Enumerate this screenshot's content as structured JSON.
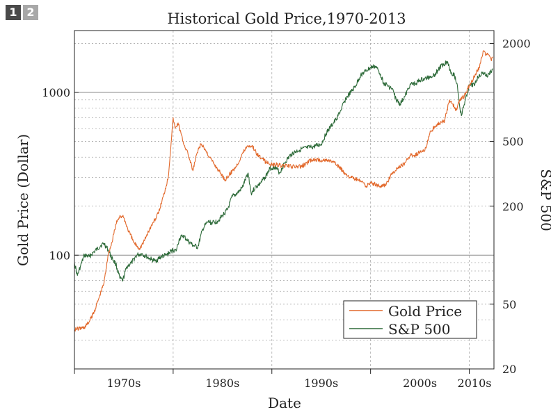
{
  "badges": [
    {
      "label": "1",
      "active": true
    },
    {
      "label": "2",
      "active": false
    }
  ],
  "chart_data": {
    "type": "line",
    "title": "Historical Gold Price,1970-2013",
    "xlabel": "Date",
    "ylabel": "Gold Price (Dollar)",
    "ylabel_right": "S&P 500",
    "x_range": [
      1970,
      2012.5
    ],
    "x_tick_labels": [
      "1970s",
      "1980s",
      "1990s",
      "2000s",
      "2010s"
    ],
    "y_scale": "log",
    "y_range": [
      20,
      2400
    ],
    "y_tick_labels": [
      "100",
      "1000"
    ],
    "y_right_scale": "log",
    "y_right_range": [
      20,
      2400
    ],
    "y_right_tick_labels": [
      "20",
      "50",
      "200",
      "500",
      "2000"
    ],
    "grid": true,
    "legend_position": "bottom-right",
    "colors": {
      "gold": "#e2692c",
      "sp500": "#2e6b3a",
      "reference": "#888888",
      "grid": "#aaaaaa"
    },
    "series": [
      {
        "name": "Gold Price",
        "color": "#e2692c",
        "axis": "left",
        "x": [
          1970.0,
          1971.0,
          1971.5,
          1972.0,
          1972.5,
          1973.0,
          1973.4,
          1973.8,
          1974.2,
          1974.6,
          1975.0,
          1975.4,
          1976.0,
          1976.6,
          1977.0,
          1977.5,
          1978.0,
          1978.5,
          1979.0,
          1979.5,
          1980.0,
          1980.2,
          1980.5,
          1981.0,
          1981.5,
          1982.0,
          1982.4,
          1982.8,
          1983.2,
          1983.7,
          1984.2,
          1984.8,
          1985.3,
          1986.0,
          1986.5,
          1987.0,
          1987.5,
          1988.0,
          1988.5,
          1989.0,
          1989.5,
          1990.0,
          1990.5,
          1991.0,
          1992.0,
          1993.0,
          1994.0,
          1995.0,
          1996.0,
          1996.8,
          1997.4,
          1998.0,
          1999.0,
          1999.6,
          2000.0,
          2001.0,
          2001.5,
          2002.0,
          2002.5,
          2003.0,
          2003.5,
          2004.0,
          2004.5,
          2005.0,
          2005.5,
          2006.0,
          2006.5,
          2007.0,
          2007.5,
          2008.0,
          2008.3,
          2008.7,
          2009.0,
          2009.5,
          2010.0,
          2010.5,
          2011.0,
          2011.4,
          2011.7,
          2012.0,
          2012.2,
          2012.4
        ],
        "y": [
          35,
          36,
          39,
          45,
          55,
          68,
          100,
          120,
          155,
          175,
          170,
          145,
          120,
          110,
          120,
          140,
          160,
          180,
          230,
          300,
          700,
          600,
          650,
          500,
          420,
          330,
          420,
          480,
          450,
          400,
          360,
          320,
          290,
          330,
          360,
          420,
          470,
          470,
          420,
          390,
          370,
          360,
          360,
          355,
          350,
          350,
          385,
          385,
          380,
          350,
          320,
          300,
          285,
          265,
          280,
          265,
          270,
          305,
          330,
          350,
          370,
          410,
          410,
          430,
          440,
          560,
          620,
          650,
          670,
          900,
          850,
          780,
          900,
          950,
          1100,
          1250,
          1420,
          1800,
          1700,
          1700,
          1600,
          1650
        ]
      },
      {
        "name": "S&P 500",
        "color": "#2e6b3a",
        "axis": "right",
        "x": [
          1970.0,
          1970.3,
          1970.6,
          1971.0,
          1971.5,
          1972.0,
          1972.7,
          1973.0,
          1973.4,
          1973.8,
          1974.2,
          1974.6,
          1974.9,
          1975.3,
          1975.8,
          1976.3,
          1976.8,
          1977.3,
          1977.8,
          1978.2,
          1978.8,
          1979.3,
          1980.0,
          1980.3,
          1980.6,
          1981.0,
          1981.5,
          1982.0,
          1982.5,
          1983.0,
          1983.5,
          1984.0,
          1984.5,
          1985.0,
          1985.5,
          1986.0,
          1986.5,
          1987.0,
          1987.6,
          1987.9,
          1988.3,
          1988.8,
          1989.3,
          1989.8,
          1990.3,
          1990.8,
          1991.3,
          1992.0,
          1993.0,
          1994.0,
          1995.0,
          1995.5,
          1996.0,
          1996.5,
          1997.0,
          1997.5,
          1998.0,
          1998.5,
          1999.0,
          1999.5,
          2000.0,
          2000.5,
          2001.0,
          2001.3,
          2001.7,
          2002.2,
          2002.6,
          2003.0,
          2003.5,
          2004.0,
          2004.5,
          2005.0,
          2005.5,
          2006.0,
          2006.5,
          2007.0,
          2007.4,
          2007.8,
          2008.1,
          2008.5,
          2008.8,
          2009.0,
          2009.2,
          2009.6,
          2010.0,
          2010.5,
          2011.0,
          2011.5,
          2011.8,
          2012.0,
          2012.2,
          2012.4
        ],
        "y": [
          90,
          75,
          85,
          100,
          98,
          105,
          115,
          118,
          108,
          96,
          88,
          72,
          70,
          85,
          90,
          100,
          102,
          98,
          94,
          92,
          98,
          100,
          108,
          106,
          125,
          132,
          122,
          115,
          112,
          145,
          160,
          158,
          162,
          175,
          190,
          230,
          240,
          260,
          320,
          240,
          260,
          275,
          300,
          340,
          350,
          320,
          370,
          420,
          450,
          460,
          480,
          560,
          620,
          680,
          780,
          920,
          1000,
          1100,
          1280,
          1350,
          1420,
          1450,
          1300,
          1150,
          1100,
          1050,
          900,
          850,
          950,
          1120,
          1130,
          1190,
          1210,
          1250,
          1290,
          1420,
          1500,
          1550,
          1350,
          1270,
          1100,
          850,
          720,
          900,
          1100,
          1120,
          1280,
          1320,
          1250,
          1300,
          1350,
          1400
        ]
      }
    ]
  }
}
